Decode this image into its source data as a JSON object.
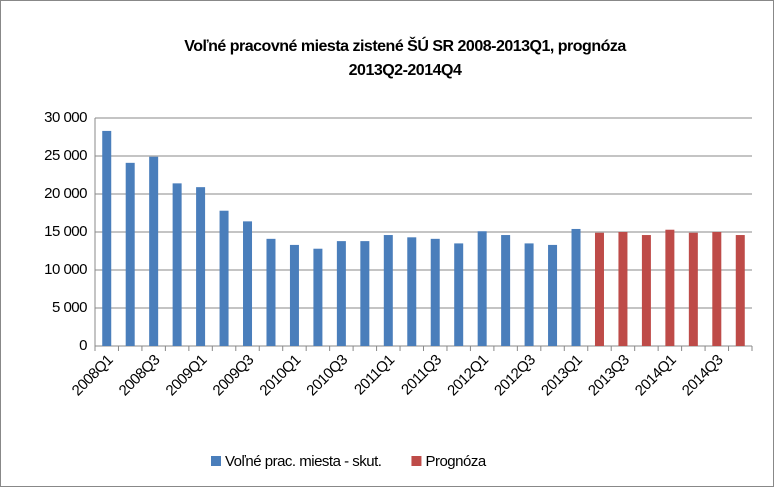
{
  "chart_data": {
    "type": "bar",
    "title": [
      "Voľné pracovné miesta zistené ŠÚ SR 2008-2013Q1,   prognóza",
      "2013Q2-2014Q4"
    ],
    "categories": [
      "2008Q1",
      null,
      "2008Q3",
      null,
      "2009Q1",
      null,
      "2009Q3",
      null,
      "2010Q1",
      null,
      "2010Q3",
      null,
      "2011Q1",
      null,
      "2011Q3",
      null,
      "2012Q1",
      null,
      "2012Q3",
      null,
      "2013Q1",
      null,
      "2013Q3",
      null,
      "2014Q1",
      null,
      "2014Q3",
      null
    ],
    "series": [
      {
        "name": "Voľné prac. miesta - skut.",
        "color": "#4a7ebb",
        "values": [
          28300,
          24100,
          24900,
          21400,
          20900,
          17800,
          16400,
          14100,
          13300,
          12800,
          13800,
          13800,
          14600,
          14300,
          14100,
          13500,
          15100,
          14600,
          13500,
          13300,
          15400,
          null,
          null,
          null,
          null,
          null,
          null,
          null
        ]
      },
      {
        "name": "Prognóza",
        "color": "#be4b48",
        "values": [
          null,
          null,
          null,
          null,
          null,
          null,
          null,
          null,
          null,
          null,
          null,
          null,
          null,
          null,
          null,
          null,
          null,
          null,
          null,
          null,
          null,
          14900,
          15000,
          14600,
          15300,
          14900,
          15000,
          14600
        ]
      }
    ],
    "ylim": [
      0,
      30000
    ],
    "yticks": [
      0,
      {
        "value": 5000,
        "label": "5 000"
      },
      {
        "value": 10000,
        "label": "10 000"
      },
      {
        "value": 15000,
        "label": "15 000"
      },
      {
        "value": 20000,
        "label": "20 000"
      },
      {
        "value": 25000,
        "label": "25 000"
      },
      {
        "value": 30000,
        "label": "30 000"
      }
    ],
    "grid": true,
    "legend": "bottom"
  }
}
